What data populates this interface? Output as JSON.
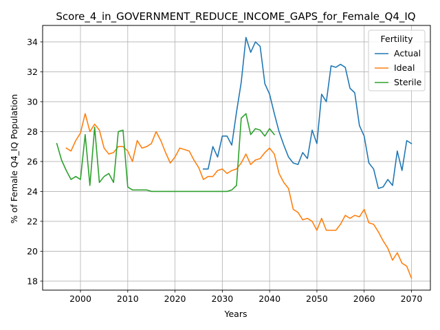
{
  "chart_data": {
    "type": "line",
    "title": "Score_4_in_GOVERNMENT_REDUCE_INCOME_GAPS_for_Female_Q4_IQ",
    "xlabel": "Years",
    "ylabel": "% of Female Q4_IQ Population",
    "xlim": [
      1992,
      2074
    ],
    "ylim": [
      17.4,
      35.1
    ],
    "xticks": [
      2000,
      2010,
      2020,
      2030,
      2040,
      2050,
      2060,
      2070
    ],
    "yticks": [
      18,
      20,
      22,
      24,
      26,
      28,
      30,
      32,
      34
    ],
    "grid": true,
    "legend": {
      "title": "Fertility",
      "position": "top-right"
    },
    "series": [
      {
        "name": "Actual",
        "color": "#1f77b4",
        "points": [
          [
            2026,
            25.5
          ],
          [
            2027,
            25.5
          ],
          [
            2028,
            27.0
          ],
          [
            2029,
            26.3
          ],
          [
            2030,
            27.7
          ],
          [
            2031,
            27.7
          ],
          [
            2032,
            27.1
          ],
          [
            2033,
            29.3
          ],
          [
            2034,
            31.3
          ],
          [
            2035,
            34.3
          ],
          [
            2036,
            33.3
          ],
          [
            2037,
            34.0
          ],
          [
            2038,
            33.7
          ],
          [
            2039,
            31.2
          ],
          [
            2040,
            30.5
          ],
          [
            2041,
            29.2
          ],
          [
            2042,
            28.0
          ],
          [
            2043,
            27.1
          ],
          [
            2044,
            26.3
          ],
          [
            2045,
            25.9
          ],
          [
            2046,
            25.8
          ],
          [
            2047,
            26.6
          ],
          [
            2048,
            26.2
          ],
          [
            2049,
            28.1
          ],
          [
            2050,
            27.2
          ],
          [
            2051,
            30.5
          ],
          [
            2052,
            30.0
          ],
          [
            2053,
            32.4
          ],
          [
            2054,
            32.3
          ],
          [
            2055,
            32.5
          ],
          [
            2056,
            32.3
          ],
          [
            2057,
            30.9
          ],
          [
            2058,
            30.6
          ],
          [
            2059,
            28.4
          ],
          [
            2060,
            27.7
          ],
          [
            2061,
            25.9
          ],
          [
            2062,
            25.5
          ],
          [
            2063,
            24.2
          ],
          [
            2064,
            24.3
          ],
          [
            2065,
            24.8
          ],
          [
            2066,
            24.4
          ],
          [
            2067,
            26.7
          ],
          [
            2068,
            25.4
          ],
          [
            2069,
            27.4
          ],
          [
            2070,
            27.2
          ]
        ]
      },
      {
        "name": "Ideal",
        "color": "#ff7f0e",
        "points": [
          [
            1997,
            26.9
          ],
          [
            1998,
            26.7
          ],
          [
            1999,
            27.4
          ],
          [
            2000,
            27.9
          ],
          [
            2001,
            29.2
          ],
          [
            2002,
            28.0
          ],
          [
            2003,
            28.5
          ],
          [
            2004,
            28.1
          ],
          [
            2005,
            26.9
          ],
          [
            2006,
            26.5
          ],
          [
            2007,
            26.6
          ],
          [
            2008,
            27.0
          ],
          [
            2009,
            27.0
          ],
          [
            2010,
            26.7
          ],
          [
            2011,
            26.0
          ],
          [
            2012,
            27.4
          ],
          [
            2013,
            26.9
          ],
          [
            2014,
            27.0
          ],
          [
            2015,
            27.2
          ],
          [
            2016,
            28.0
          ],
          [
            2017,
            27.4
          ],
          [
            2018,
            26.6
          ],
          [
            2019,
            25.9
          ],
          [
            2020,
            26.3
          ],
          [
            2021,
            26.9
          ],
          [
            2022,
            26.8
          ],
          [
            2023,
            26.7
          ],
          [
            2024,
            26.1
          ],
          [
            2025,
            25.6
          ],
          [
            2026,
            24.8
          ],
          [
            2027,
            25.0
          ],
          [
            2028,
            25.0
          ],
          [
            2029,
            25.4
          ],
          [
            2030,
            25.5
          ],
          [
            2031,
            25.2
          ],
          [
            2032,
            25.4
          ],
          [
            2033,
            25.5
          ],
          [
            2034,
            25.9
          ],
          [
            2035,
            26.5
          ],
          [
            2036,
            25.8
          ],
          [
            2037,
            26.1
          ],
          [
            2038,
            26.2
          ],
          [
            2039,
            26.6
          ],
          [
            2040,
            26.9
          ],
          [
            2041,
            26.5
          ],
          [
            2042,
            25.2
          ],
          [
            2043,
            24.6
          ],
          [
            2044,
            24.2
          ],
          [
            2045,
            22.8
          ],
          [
            2046,
            22.6
          ],
          [
            2047,
            22.1
          ],
          [
            2048,
            22.2
          ],
          [
            2049,
            22.0
          ],
          [
            2050,
            21.4
          ],
          [
            2051,
            22.2
          ],
          [
            2052,
            21.4
          ],
          [
            2053,
            21.4
          ],
          [
            2054,
            21.4
          ],
          [
            2055,
            21.8
          ],
          [
            2056,
            22.4
          ],
          [
            2057,
            22.2
          ],
          [
            2058,
            22.4
          ],
          [
            2059,
            22.3
          ],
          [
            2060,
            22.8
          ],
          [
            2061,
            21.9
          ],
          [
            2062,
            21.8
          ],
          [
            2063,
            21.3
          ],
          [
            2064,
            20.7
          ],
          [
            2065,
            20.2
          ],
          [
            2066,
            19.4
          ],
          [
            2067,
            19.9
          ],
          [
            2068,
            19.2
          ],
          [
            2069,
            19.0
          ],
          [
            2070,
            18.2
          ]
        ]
      },
      {
        "name": "Sterile",
        "color": "#2ca02c",
        "points": [
          [
            1995,
            27.2
          ],
          [
            1996,
            26.1
          ],
          [
            1997,
            25.4
          ],
          [
            1998,
            24.8
          ],
          [
            1999,
            25.0
          ],
          [
            2000,
            24.8
          ],
          [
            2001,
            27.8
          ],
          [
            2002,
            24.4
          ],
          [
            2003,
            28.3
          ],
          [
            2004,
            24.6
          ],
          [
            2005,
            25.0
          ],
          [
            2006,
            25.2
          ],
          [
            2007,
            24.6
          ],
          [
            2008,
            28.0
          ],
          [
            2009,
            28.1
          ],
          [
            2010,
            24.3
          ],
          [
            2011,
            24.1
          ],
          [
            2012,
            24.1
          ],
          [
            2013,
            24.1
          ],
          [
            2014,
            24.1
          ],
          [
            2015,
            24.0
          ],
          [
            2016,
            24.0
          ],
          [
            2017,
            24.0
          ],
          [
            2018,
            24.0
          ],
          [
            2019,
            24.0
          ],
          [
            2020,
            24.0
          ],
          [
            2021,
            24.0
          ],
          [
            2022,
            24.0
          ],
          [
            2023,
            24.0
          ],
          [
            2024,
            24.0
          ],
          [
            2025,
            24.0
          ],
          [
            2026,
            24.0
          ],
          [
            2027,
            24.0
          ],
          [
            2028,
            24.0
          ],
          [
            2029,
            24.0
          ],
          [
            2030,
            24.0
          ],
          [
            2031,
            24.0
          ],
          [
            2032,
            24.1
          ],
          [
            2033,
            24.4
          ],
          [
            2034,
            28.9
          ],
          [
            2035,
            29.2
          ],
          [
            2036,
            27.8
          ],
          [
            2037,
            28.2
          ],
          [
            2038,
            28.1
          ],
          [
            2039,
            27.7
          ],
          [
            2040,
            28.2
          ],
          [
            2041,
            27.8
          ]
        ]
      }
    ]
  }
}
